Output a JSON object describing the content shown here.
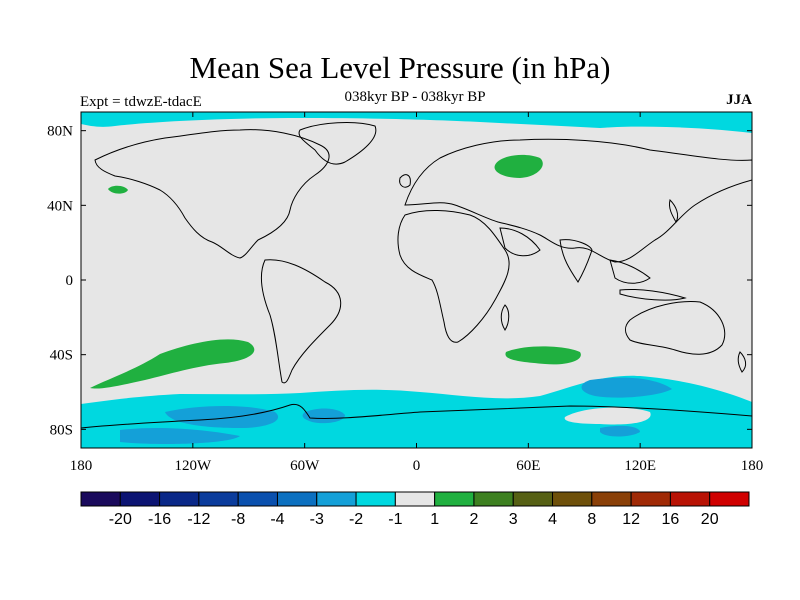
{
  "header": {
    "title": "Mean Sea Level Pressure (in hPa)",
    "subtitle_center": "038kyr BP - 038kyr BP",
    "subtitle_left": "Expt = tdwzE-tdacE",
    "subtitle_right": "JJA"
  },
  "map": {
    "projection": "cylindrical-equidistant",
    "lon_range": [
      -180,
      180
    ],
    "lat_range": [
      -90,
      90
    ],
    "background_color": "#e6e6e6",
    "coastline_color": "#000000",
    "x_ticks": [
      {
        "lon": -180,
        "label": "180"
      },
      {
        "lon": -120,
        "label": "120W"
      },
      {
        "lon": -60,
        "label": "60W"
      },
      {
        "lon": 0,
        "label": "0"
      },
      {
        "lon": 60,
        "label": "60E"
      },
      {
        "lon": 120,
        "label": "120E"
      },
      {
        "lon": 180,
        "label": "180"
      }
    ],
    "y_ticks": [
      {
        "lat": 80,
        "label": "80N"
      },
      {
        "lat": 40,
        "label": "40N"
      },
      {
        "lat": 0,
        "label": "0"
      },
      {
        "lat": -40,
        "label": "40S"
      },
      {
        "lat": -80,
        "label": "80S"
      }
    ]
  },
  "colorbar": {
    "colors": [
      "#1a0a5c",
      "#0c1473",
      "#0a2888",
      "#0b3c9c",
      "#0a50ae",
      "#0c70c0",
      "#14a0d8",
      "#00d8e0",
      "#e6e6e6",
      "#20b040",
      "#3d8020",
      "#566014",
      "#6e500a",
      "#8a4008",
      "#a02a06",
      "#b81204",
      "#d00000"
    ],
    "labels": [
      "-20",
      "-16",
      "-12",
      "-8",
      "-4",
      "-3",
      "-2",
      "-1",
      "1",
      "2",
      "3",
      "4",
      "8",
      "12",
      "16",
      "20"
    ]
  }
}
